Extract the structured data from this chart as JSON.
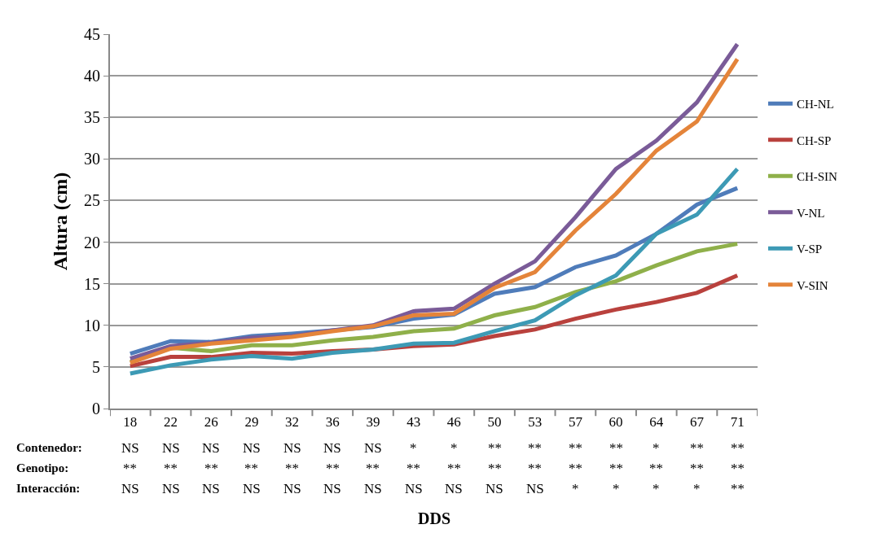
{
  "chart_data": {
    "type": "line",
    "ylabel": "Altura (cm)",
    "xlabel": "DDS",
    "categories": [
      "18",
      "22",
      "26",
      "29",
      "32",
      "36",
      "39",
      "43",
      "46",
      "50",
      "53",
      "57",
      "60",
      "64",
      "67",
      "71"
    ],
    "series": [
      {
        "name": "CH-NL",
        "color": "#4f7cba",
        "values": [
          6.6,
          8.1,
          8.0,
          8.7,
          9.0,
          9.4,
          9.8,
          10.8,
          11.3,
          13.8,
          14.6,
          17.0,
          18.4,
          21.0,
          24.5,
          26.5
        ]
      },
      {
        "name": "CH-SP",
        "color": "#b9413d",
        "values": [
          5.1,
          6.2,
          6.2,
          6.7,
          6.6,
          6.9,
          7.1,
          7.5,
          7.7,
          8.7,
          9.5,
          10.8,
          11.9,
          12.8,
          13.9,
          16.0
        ]
      },
      {
        "name": "CH-SIN",
        "color": "#8fb04a",
        "values": [
          5.6,
          7.3,
          6.9,
          7.6,
          7.6,
          8.2,
          8.6,
          9.3,
          9.6,
          11.2,
          12.2,
          14.0,
          15.3,
          17.2,
          18.9,
          19.8
        ]
      },
      {
        "name": "V-NL",
        "color": "#7a5b98",
        "values": [
          6.0,
          7.5,
          7.9,
          8.5,
          8.7,
          9.4,
          10.0,
          11.7,
          12.0,
          15.0,
          17.7,
          23.0,
          28.8,
          32.2,
          36.8,
          43.8
        ]
      },
      {
        "name": "V-SP",
        "color": "#3d9ab5",
        "values": [
          4.2,
          5.2,
          5.9,
          6.3,
          6.0,
          6.7,
          7.1,
          7.8,
          7.9,
          9.3,
          10.6,
          13.6,
          16.0,
          21.0,
          23.3,
          28.8
        ]
      },
      {
        "name": "V-SIN",
        "color": "#e4843a",
        "values": [
          5.5,
          7.2,
          7.8,
          8.2,
          8.6,
          9.3,
          9.9,
          11.2,
          11.4,
          14.5,
          16.4,
          21.4,
          25.8,
          31.0,
          34.5,
          42.0
        ]
      }
    ],
    "ylim": [
      0,
      45
    ],
    "yticks": [
      0,
      5,
      10,
      15,
      20,
      25,
      30,
      35,
      40,
      45
    ],
    "grid": "y",
    "legend": "right",
    "marker": "none",
    "line_style": "solid",
    "annotations": [
      "Contenedor:",
      "NS",
      "NS",
      "NS",
      "NS",
      "NS",
      "NS",
      "NS",
      "*",
      "*",
      "**",
      "**",
      "**",
      "**",
      "*",
      "**",
      "**",
      "Genotipo:",
      "**",
      "**",
      "**",
      "**",
      "**",
      "**",
      "**",
      "**",
      "**",
      "**",
      "**",
      "**",
      "**",
      "**",
      "**",
      "**",
      "Interacción:",
      "NS",
      "NS",
      "NS",
      "NS",
      "NS",
      "NS",
      "NS",
      "NS",
      "NS",
      "NS",
      "NS",
      "*",
      "*",
      "*",
      "*",
      "**"
    ]
  }
}
